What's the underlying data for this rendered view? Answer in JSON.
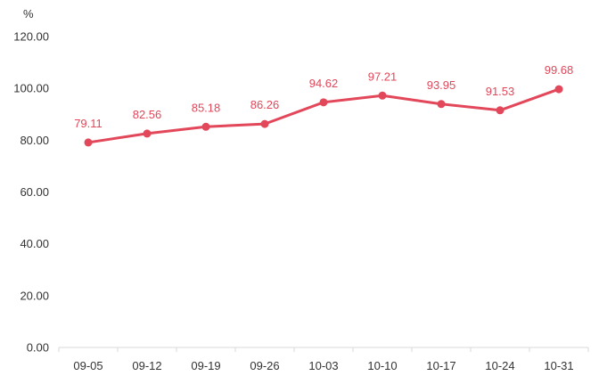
{
  "chart_data": {
    "type": "line",
    "unit_label": "%",
    "categories": [
      "09-05",
      "09-12",
      "09-19",
      "09-26",
      "10-03",
      "10-10",
      "10-17",
      "10-24",
      "10-31"
    ],
    "series": [
      {
        "values": [
          79.11,
          82.56,
          85.18,
          86.26,
          94.62,
          97.21,
          93.95,
          91.53,
          99.68
        ],
        "value_labels": [
          "79.11",
          "82.56",
          "85.18",
          "86.26",
          "94.62",
          "97.21",
          "93.95",
          "91.53",
          "99.68"
        ],
        "color": "#e2475a"
      }
    ],
    "yticks": [
      "0.00",
      "20.00",
      "40.00",
      "60.00",
      "80.00",
      "100.00",
      "120.00"
    ],
    "ylim": [
      0,
      120
    ],
    "grid": false,
    "legend": "none",
    "colors": {
      "axis": "#d9d9d9",
      "text": "#333333"
    }
  }
}
